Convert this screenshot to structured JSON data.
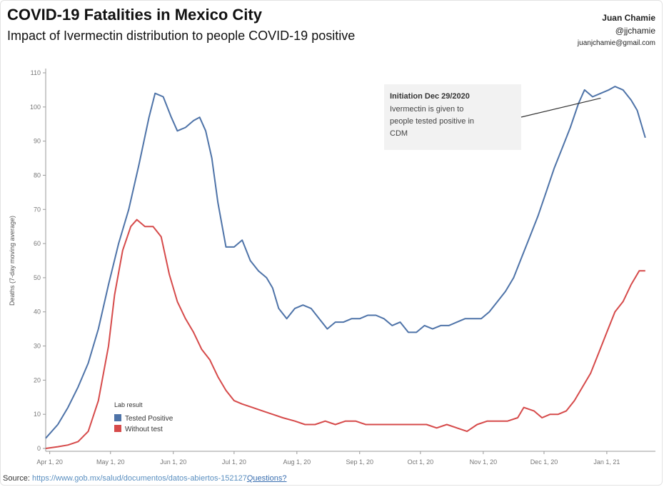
{
  "header": {
    "title": "COVID-19 Fatalities in Mexico City",
    "subtitle": "Impact of Ivermectin distribution to people COVID-19 positive",
    "author_name": "Juan Chamie",
    "author_handle": "@jjchamie",
    "author_email": "juanjchamie@gmail.com"
  },
  "footer": {
    "source_label": "Source:",
    "source_url": "https://www.gob.mx/salud/documentos/datos-abiertos-152127",
    "questions": "Questions?"
  },
  "colors": {
    "tested_positive": "#4e73a8",
    "without_test": "#d64a4a",
    "axis": "#999999",
    "annotation_bg": "#f2f2f2"
  },
  "chart_data": {
    "type": "line",
    "title": "COVID-19 Fatalities in Mexico City",
    "subtitle": "Impact of Ivermectin distribution to people COVID-19 positive",
    "ylabel": "Deaths (7-day moving average)",
    "xlabel": "",
    "ylim": [
      0,
      110
    ],
    "yticks": [
      0,
      10,
      20,
      30,
      40,
      50,
      60,
      70,
      80,
      90,
      100,
      110
    ],
    "xlim": [
      "2020-03-30",
      "2021-01-25"
    ],
    "xticks": [
      {
        "date": "2020-04-01",
        "label": "Apr 1, 20"
      },
      {
        "date": "2020-05-01",
        "label": "May 1, 20"
      },
      {
        "date": "2020-06-01",
        "label": "Jun 1, 20"
      },
      {
        "date": "2020-07-01",
        "label": "Jul 1, 20"
      },
      {
        "date": "2020-08-01",
        "label": "Aug 1, 20"
      },
      {
        "date": "2020-09-01",
        "label": "Sep 1, 20"
      },
      {
        "date": "2020-10-01",
        "label": "Oct 1, 20"
      },
      {
        "date": "2020-11-01",
        "label": "Nov 1, 20"
      },
      {
        "date": "2020-12-01",
        "label": "Dec 1, 20"
      },
      {
        "date": "2021-01-01",
        "label": "Jan 1, 21"
      }
    ],
    "grid": false,
    "legend": {
      "title": "Lab result",
      "placement": "bottom-left",
      "entries": [
        "Tested Positive",
        "Without test"
      ]
    },
    "annotation": {
      "title": "Initiation Dec 29/2020",
      "lines": [
        "Ivermectin is given to",
        "people tested positive in",
        "CDM"
      ],
      "points_to": {
        "date": "2020-12-29",
        "y": 103
      }
    },
    "series": [
      {
        "name": "Tested Positive",
        "points": [
          [
            "2020-03-30",
            3
          ],
          [
            "2020-04-05",
            7
          ],
          [
            "2020-04-10",
            12
          ],
          [
            "2020-04-15",
            18
          ],
          [
            "2020-04-20",
            25
          ],
          [
            "2020-04-25",
            35
          ],
          [
            "2020-04-30",
            48
          ],
          [
            "2020-05-05",
            60
          ],
          [
            "2020-05-10",
            70
          ],
          [
            "2020-05-15",
            83
          ],
          [
            "2020-05-20",
            97
          ],
          [
            "2020-05-23",
            104
          ],
          [
            "2020-05-27",
            103
          ],
          [
            "2020-05-31",
            97
          ],
          [
            "2020-06-03",
            93
          ],
          [
            "2020-06-07",
            94
          ],
          [
            "2020-06-11",
            96
          ],
          [
            "2020-06-14",
            97
          ],
          [
            "2020-06-17",
            93
          ],
          [
            "2020-06-20",
            85
          ],
          [
            "2020-06-23",
            72
          ],
          [
            "2020-06-27",
            59
          ],
          [
            "2020-07-01",
            59
          ],
          [
            "2020-07-05",
            61
          ],
          [
            "2020-07-09",
            55
          ],
          [
            "2020-07-13",
            52
          ],
          [
            "2020-07-17",
            50
          ],
          [
            "2020-07-20",
            47
          ],
          [
            "2020-07-23",
            41
          ],
          [
            "2020-07-27",
            38
          ],
          [
            "2020-07-31",
            41
          ],
          [
            "2020-08-04",
            42
          ],
          [
            "2020-08-08",
            41
          ],
          [
            "2020-08-12",
            38
          ],
          [
            "2020-08-16",
            35
          ],
          [
            "2020-08-20",
            37
          ],
          [
            "2020-08-24",
            37
          ],
          [
            "2020-08-28",
            38
          ],
          [
            "2020-09-01",
            38
          ],
          [
            "2020-09-05",
            39
          ],
          [
            "2020-09-09",
            39
          ],
          [
            "2020-09-13",
            38
          ],
          [
            "2020-09-17",
            36
          ],
          [
            "2020-09-21",
            37
          ],
          [
            "2020-09-25",
            34
          ],
          [
            "2020-09-29",
            34
          ],
          [
            "2020-10-03",
            36
          ],
          [
            "2020-10-07",
            35
          ],
          [
            "2020-10-11",
            36
          ],
          [
            "2020-10-15",
            36
          ],
          [
            "2020-10-19",
            37
          ],
          [
            "2020-10-23",
            38
          ],
          [
            "2020-10-27",
            38
          ],
          [
            "2020-10-31",
            38
          ],
          [
            "2020-11-04",
            40
          ],
          [
            "2020-11-08",
            43
          ],
          [
            "2020-11-12",
            46
          ],
          [
            "2020-11-16",
            50
          ],
          [
            "2020-11-20",
            56
          ],
          [
            "2020-11-24",
            62
          ],
          [
            "2020-11-28",
            68
          ],
          [
            "2020-12-02",
            75
          ],
          [
            "2020-12-06",
            82
          ],
          [
            "2020-12-10",
            88
          ],
          [
            "2020-12-14",
            94
          ],
          [
            "2020-12-18",
            101
          ],
          [
            "2020-12-21",
            105
          ],
          [
            "2020-12-25",
            103
          ],
          [
            "2020-12-29",
            104
          ],
          [
            "2021-01-02",
            105
          ],
          [
            "2021-01-05",
            106
          ],
          [
            "2021-01-09",
            105
          ],
          [
            "2021-01-13",
            102
          ],
          [
            "2021-01-16",
            99
          ],
          [
            "2021-01-20",
            91
          ]
        ]
      },
      {
        "name": "Without test",
        "points": [
          [
            "2020-03-30",
            0
          ],
          [
            "2020-04-05",
            0.5
          ],
          [
            "2020-04-10",
            1
          ],
          [
            "2020-04-15",
            2
          ],
          [
            "2020-04-20",
            5
          ],
          [
            "2020-04-25",
            14
          ],
          [
            "2020-04-30",
            30
          ],
          [
            "2020-05-03",
            45
          ],
          [
            "2020-05-07",
            58
          ],
          [
            "2020-05-11",
            65
          ],
          [
            "2020-05-14",
            67
          ],
          [
            "2020-05-18",
            65
          ],
          [
            "2020-05-22",
            65
          ],
          [
            "2020-05-26",
            62
          ],
          [
            "2020-05-30",
            51
          ],
          [
            "2020-06-03",
            43
          ],
          [
            "2020-06-07",
            38
          ],
          [
            "2020-06-11",
            34
          ],
          [
            "2020-06-15",
            29
          ],
          [
            "2020-06-19",
            26
          ],
          [
            "2020-06-23",
            21
          ],
          [
            "2020-06-27",
            17
          ],
          [
            "2020-07-01",
            14
          ],
          [
            "2020-07-05",
            13
          ],
          [
            "2020-07-10",
            12
          ],
          [
            "2020-07-15",
            11
          ],
          [
            "2020-07-20",
            10
          ],
          [
            "2020-07-25",
            9
          ],
          [
            "2020-07-31",
            8
          ],
          [
            "2020-08-05",
            7
          ],
          [
            "2020-08-10",
            7
          ],
          [
            "2020-08-15",
            8
          ],
          [
            "2020-08-20",
            7
          ],
          [
            "2020-08-25",
            8
          ],
          [
            "2020-08-30",
            8
          ],
          [
            "2020-09-04",
            7
          ],
          [
            "2020-09-09",
            7
          ],
          [
            "2020-09-14",
            7
          ],
          [
            "2020-09-19",
            7
          ],
          [
            "2020-09-24",
            7
          ],
          [
            "2020-09-29",
            7
          ],
          [
            "2020-10-04",
            7
          ],
          [
            "2020-10-09",
            6
          ],
          [
            "2020-10-14",
            7
          ],
          [
            "2020-10-19",
            6
          ],
          [
            "2020-10-24",
            5
          ],
          [
            "2020-10-29",
            7
          ],
          [
            "2020-11-03",
            8
          ],
          [
            "2020-11-08",
            8
          ],
          [
            "2020-11-13",
            8
          ],
          [
            "2020-11-18",
            9
          ],
          [
            "2020-11-21",
            12
          ],
          [
            "2020-11-26",
            11
          ],
          [
            "2020-11-30",
            9
          ],
          [
            "2020-12-04",
            10
          ],
          [
            "2020-12-08",
            10
          ],
          [
            "2020-12-12",
            11
          ],
          [
            "2020-12-16",
            14
          ],
          [
            "2020-12-20",
            18
          ],
          [
            "2020-12-24",
            22
          ],
          [
            "2020-12-28",
            28
          ],
          [
            "2021-01-01",
            34
          ],
          [
            "2021-01-05",
            40
          ],
          [
            "2021-01-09",
            43
          ],
          [
            "2021-01-13",
            48
          ],
          [
            "2021-01-17",
            52
          ],
          [
            "2021-01-20",
            52
          ]
        ]
      }
    ]
  }
}
